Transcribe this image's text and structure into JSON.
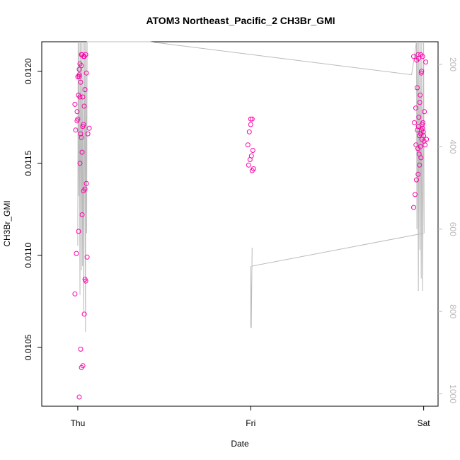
{
  "chart_data": {
    "type": "scatter",
    "title": "ATOM3 Northeast_Pacific_2 CH3Br_GMI",
    "xlabel": "Date",
    "ylabel": "CH3Br_GMI",
    "x_ticks": [
      "Thu",
      "Fri",
      "Sat"
    ],
    "xlim": [
      "Wed 19:00",
      "Sat 02:00"
    ],
    "ylim": [
      0.10185,
      0.01216
    ],
    "y_ticks": [
      "0.0105",
      "0.0110",
      "0.0115",
      "0.0120"
    ],
    "y_tick_values": [
      0.0105,
      0.011,
      0.0115,
      0.012
    ],
    "right_axis": {
      "ticks": [
        "200",
        "400",
        "600",
        "800",
        "1000"
      ],
      "values": [
        200,
        400,
        600,
        800,
        1000
      ],
      "range": [
        1030,
        145
      ],
      "inverted": true,
      "color": "#bbbbbb"
    },
    "marker_color": "#ff00aa",
    "line_color": "#bbbbbb",
    "points": {
      "Thu 00:00": [
        0.01182,
        0.01186,
        0.01187,
        0.01173,
        0.01168,
        0.01166,
        0.01197,
        0.01174,
        0.01101,
        0.01079
      ],
      "Thu 00:18": [
        0.01198,
        0.01197,
        0.01186,
        0.01209,
        0.01204,
        0.01113,
        0.01178,
        0.01156,
        0.01049,
        0.01023
      ],
      "Thu 00:36": [
        0.01208,
        0.01209,
        0.01194,
        0.01201,
        0.01181,
        0.0117,
        0.01164,
        0.0115,
        0.01136,
        0.01135
      ],
      "Thu 00:54": [
        0.01203,
        0.01199,
        0.0119,
        0.01171,
        0.01122,
        0.01099,
        0.01086,
        0.01068,
        0.0104,
        0.01039
      ],
      "Thu 01:12": [
        0.01209,
        0.01208,
        0.01169,
        0.01166,
        0.01139,
        0.01087
      ],
      "Fri 00:00": [
        0.01174,
        0.01171,
        0.01167,
        0.0116,
        0.01157,
        0.01154,
        0.01152,
        0.01149,
        0.01147,
        0.01146,
        0.01174
      ],
      "Fri 23:00": [
        0.01208,
        0.01207,
        0.01191,
        0.0118,
        0.01172,
        0.01165,
        0.01158,
        0.01141,
        0.01133,
        0.01126
      ],
      "Fri 23:20": [
        0.01209,
        0.01206,
        0.012,
        0.01187,
        0.01175,
        0.01168,
        0.0116,
        0.01153,
        0.01149,
        0.01144
      ],
      "Fri 23:40": [
        0.01208,
        0.01199,
        0.01183,
        0.0117,
        0.01167,
        0.01163,
        0.01159,
        0.01155,
        0.01162,
        0.01169
      ],
      "Sat 00:00": [
        0.01209,
        0.01205,
        0.01178,
        0.01172,
        0.01168,
        0.01163,
        0.0116,
        0.01165,
        0.01171,
        0.01166
      ]
    }
  }
}
